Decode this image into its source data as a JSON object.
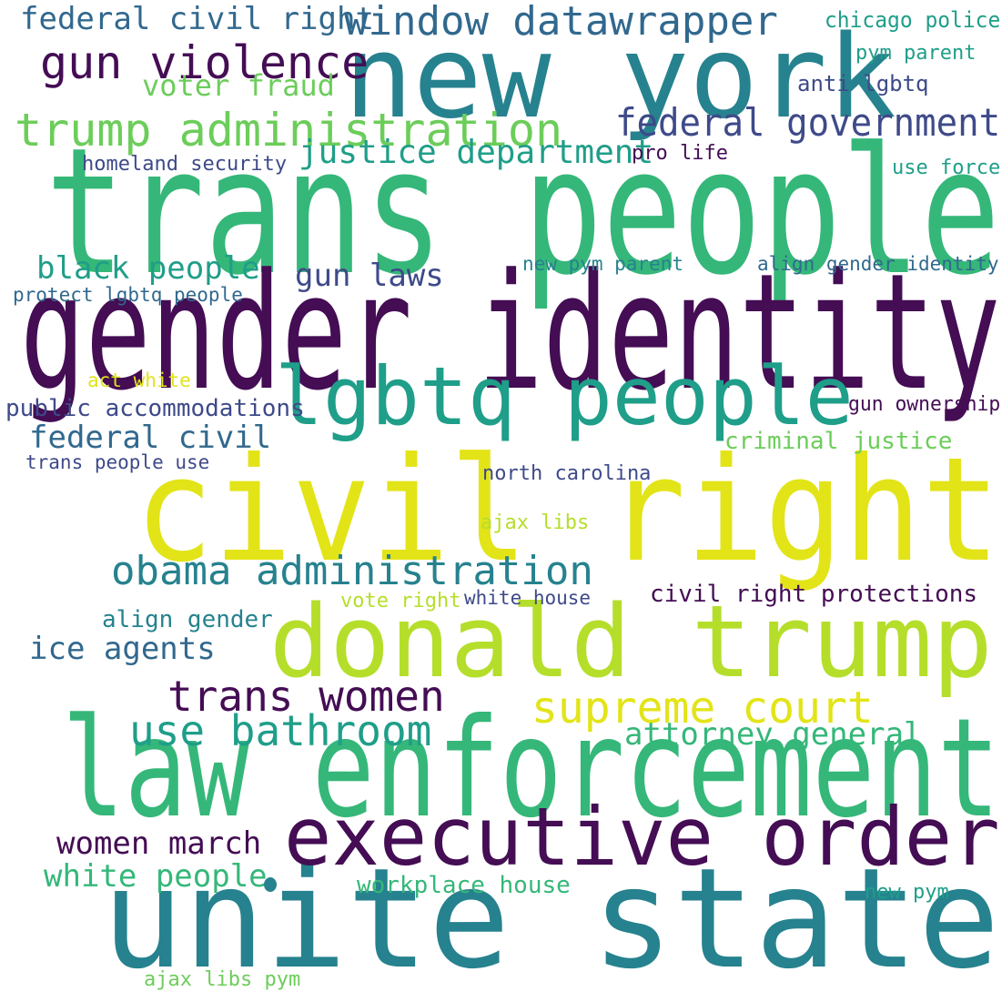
{
  "words": [
    {
      "text": "trans people",
      "color": "#35b779"
    },
    {
      "text": "gender identity",
      "color": "#440d54"
    },
    {
      "text": "civil right",
      "color": "#e2e418"
    },
    {
      "text": "law enforcement",
      "color": "#35b779"
    },
    {
      "text": "unite state",
      "color": "#26828e"
    },
    {
      "text": "new york",
      "color": "#26828e"
    },
    {
      "text": "donald trump",
      "color": "#b5de2b"
    },
    {
      "text": "executive order",
      "color": "#440d54"
    },
    {
      "text": "lgbtq people",
      "color": "#1f9e89"
    },
    {
      "text": "trump administration",
      "color": "#6ccd5a"
    },
    {
      "text": "gun violence",
      "color": "#440d54"
    },
    {
      "text": "obama administration",
      "color": "#26828e"
    },
    {
      "text": "supreme court",
      "color": "#e2e418"
    },
    {
      "text": "trans women",
      "color": "#440d54"
    },
    {
      "text": "use bathroom",
      "color": "#1f9e89"
    },
    {
      "text": "window datawrapper",
      "color": "#31688e"
    },
    {
      "text": "federal government",
      "color": "#3e4a89"
    },
    {
      "text": "federal civil right",
      "color": "#31688e"
    },
    {
      "text": "justice department",
      "color": "#1f9e89"
    },
    {
      "text": "voter fraud",
      "color": "#6ccd5a"
    },
    {
      "text": "black people",
      "color": "#1f9e89"
    },
    {
      "text": "gun laws",
      "color": "#3e4a89"
    },
    {
      "text": "federal civil",
      "color": "#31688e"
    },
    {
      "text": "ice agents",
      "color": "#31688e"
    },
    {
      "text": "attorney general",
      "color": "#35b779"
    },
    {
      "text": "women march",
      "color": "#440d54"
    },
    {
      "text": "white people",
      "color": "#35b779"
    },
    {
      "text": "civil right protections",
      "color": "#440d54"
    },
    {
      "text": "align gender",
      "color": "#26828e"
    },
    {
      "text": "workplace house",
      "color": "#35b779"
    },
    {
      "text": "public accommodations",
      "color": "#3e4a89"
    },
    {
      "text": "criminal justice",
      "color": "#6ccd5a"
    },
    {
      "text": "anti lgbtq",
      "color": "#3e4a89"
    },
    {
      "text": "chicago police",
      "color": "#1f9e89"
    },
    {
      "text": "pym parent",
      "color": "#1f9e89"
    },
    {
      "text": "homeland security",
      "color": "#3e4a89"
    },
    {
      "text": "pro life",
      "color": "#440d54"
    },
    {
      "text": "use force",
      "color": "#1f9e89"
    },
    {
      "text": "new pym parent",
      "color": "#26828e"
    },
    {
      "text": "align gender identity",
      "color": "#31688e"
    },
    {
      "text": "protect lgbtq people",
      "color": "#31688e"
    },
    {
      "text": "act white",
      "color": "#e2e418"
    },
    {
      "text": "gun ownership",
      "color": "#440d54"
    },
    {
      "text": "trans people use",
      "color": "#3e4a89"
    },
    {
      "text": "north carolina",
      "color": "#3e4a89"
    },
    {
      "text": "ajax libs",
      "color": "#b5de2b"
    },
    {
      "text": "vote right",
      "color": "#b5de2b"
    },
    {
      "text": "white house",
      "color": "#3e4a89"
    },
    {
      "text": "new pym",
      "color": "#1f9e89"
    },
    {
      "text": "ajax libs pym",
      "color": "#6ccd5a"
    }
  ]
}
